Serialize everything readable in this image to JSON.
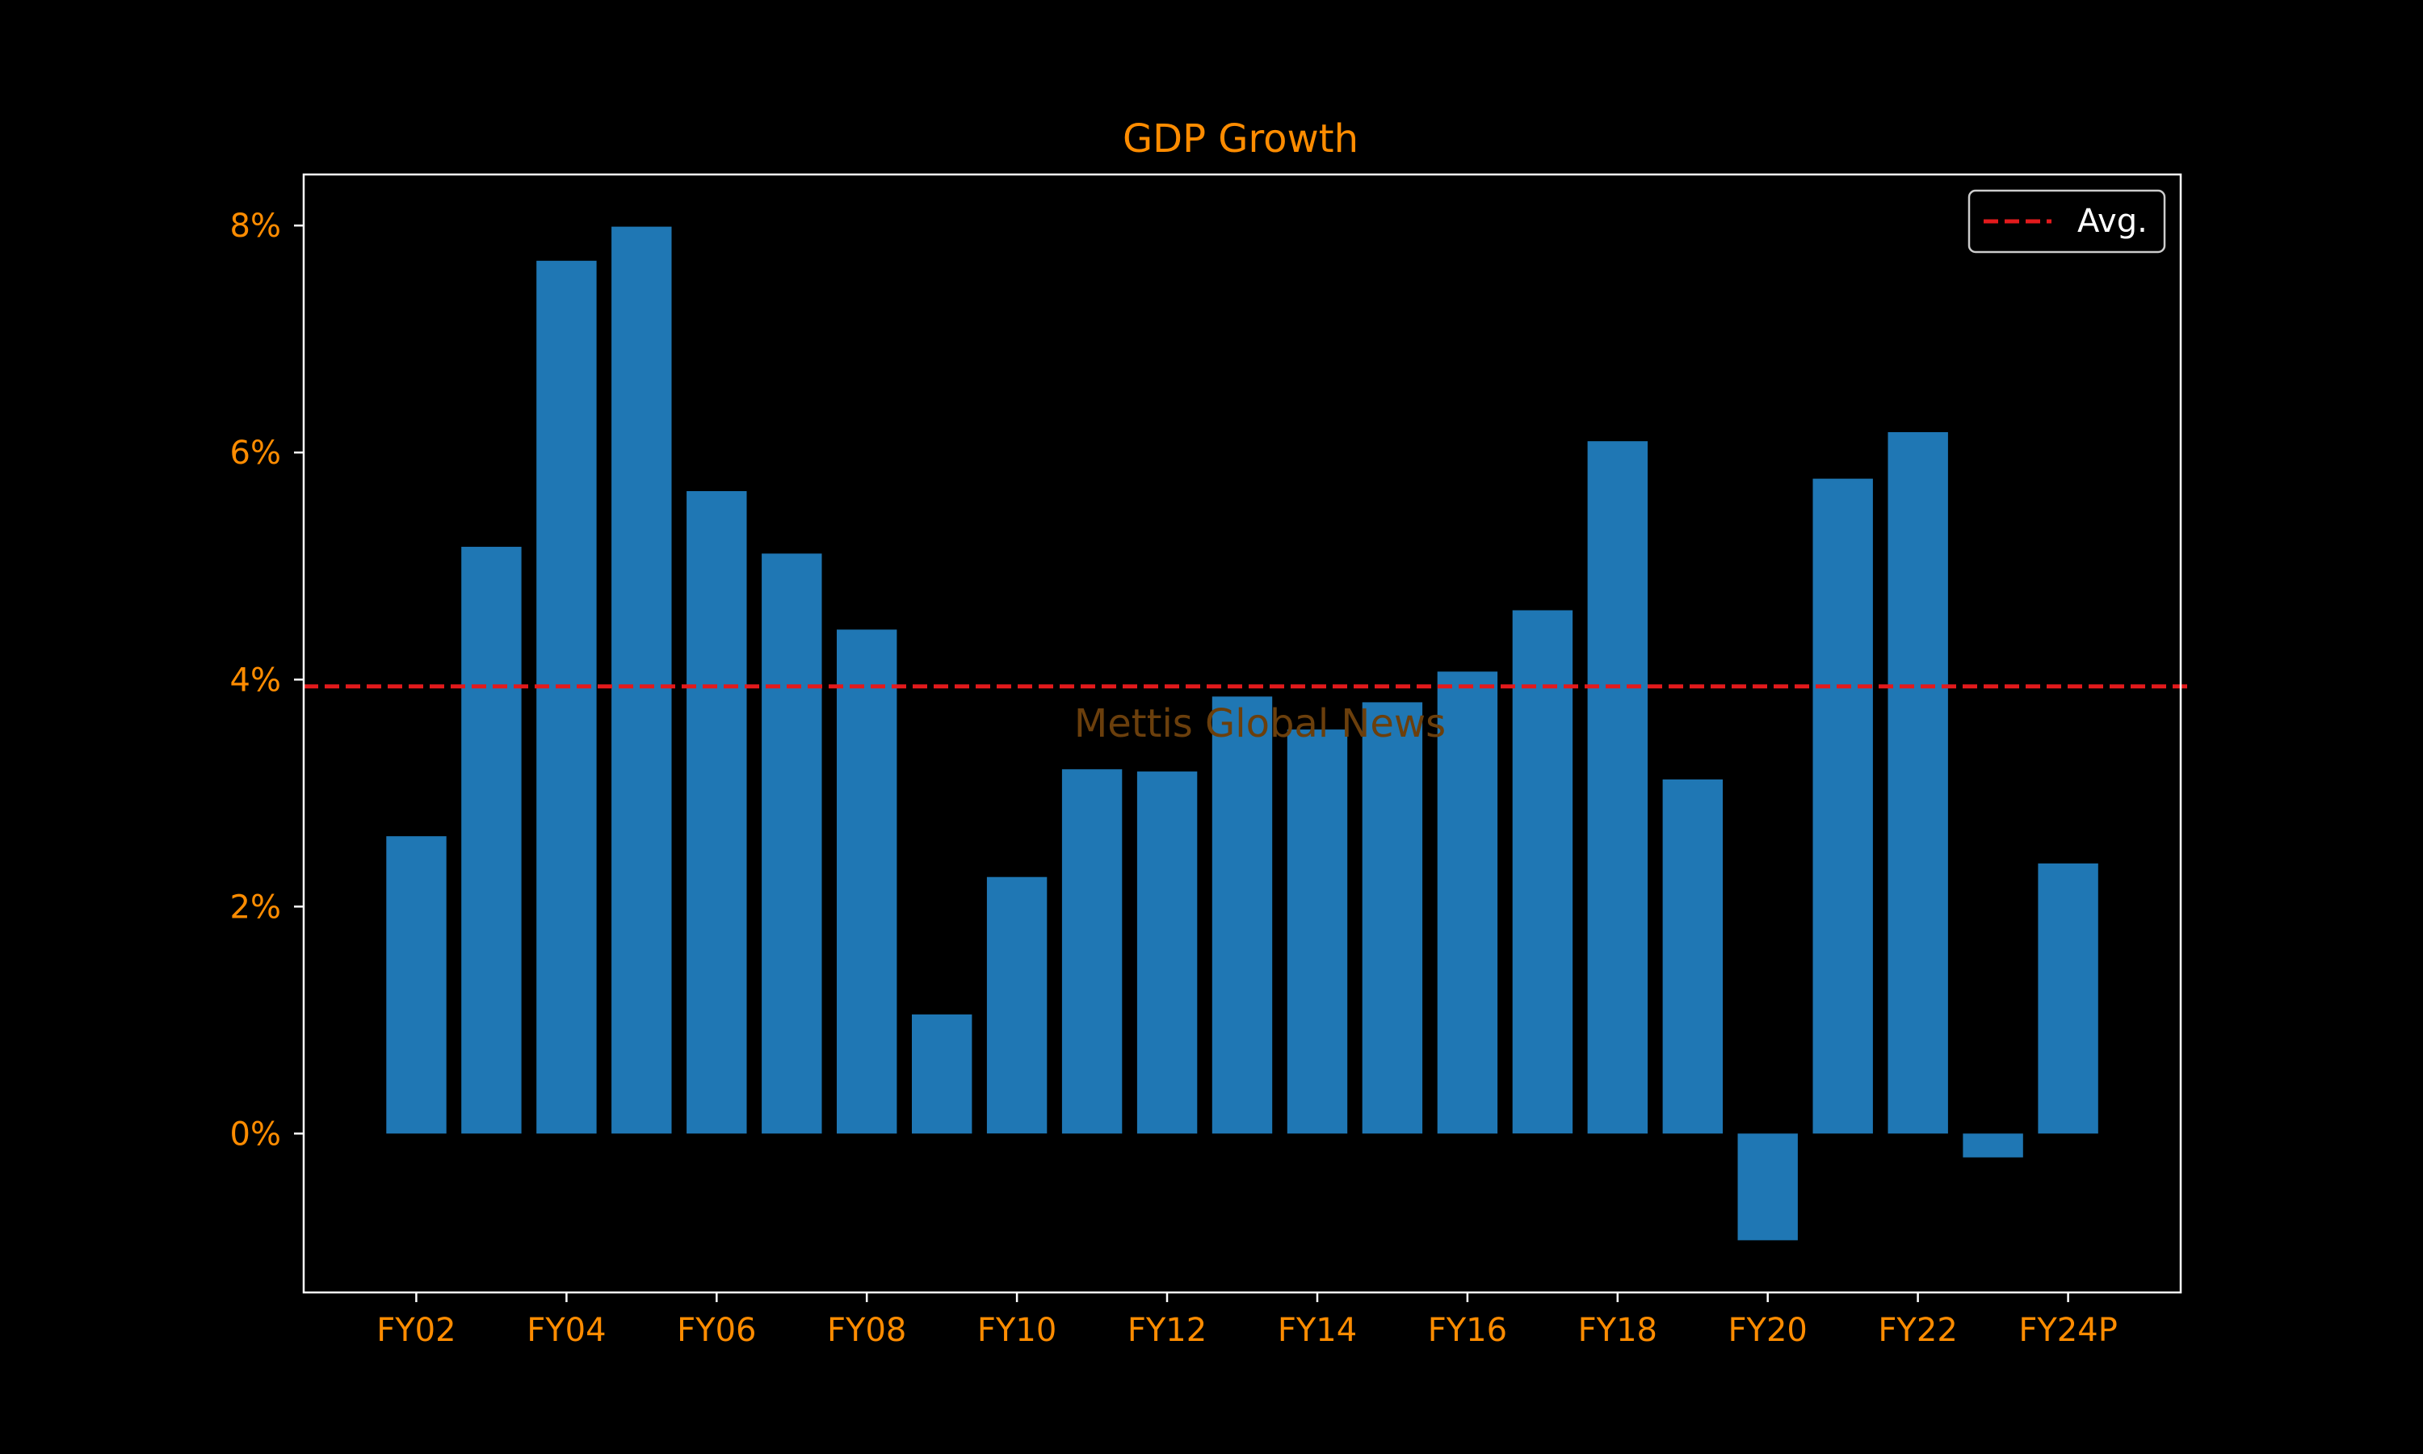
{
  "colors": {
    "background": "#000000",
    "bar": "#1f77b4",
    "text": "#ff8c00",
    "axes": "#ffffff",
    "avg_line": "#e31a1c",
    "legend_text": "#ffffff",
    "watermark": "#6b3f0c"
  },
  "watermark": "Mettis Global News",
  "chart_data": {
    "type": "bar",
    "title": "GDP Growth",
    "xlabel": "",
    "ylabel": "",
    "categories": [
      "FY02",
      "FY03",
      "FY04",
      "FY05",
      "FY06",
      "FY07",
      "FY08",
      "FY09",
      "FY10",
      "FY11",
      "FY12",
      "FY13",
      "FY14",
      "FY15",
      "FY16",
      "FY17",
      "FY18",
      "FY19",
      "FY20",
      "FY21",
      "FY22",
      "FY23",
      "FY24P"
    ],
    "values": [
      2.62,
      5.17,
      7.69,
      7.99,
      5.66,
      5.11,
      4.44,
      1.05,
      2.26,
      3.21,
      3.19,
      3.85,
      3.56,
      3.8,
      4.07,
      4.61,
      6.1,
      3.12,
      -0.94,
      5.77,
      6.18,
      -0.21,
      2.38
    ],
    "ylim": [
      -1.4,
      8.45
    ],
    "y_ticks": [
      0,
      2,
      4,
      6,
      8
    ],
    "y_tick_labels": [
      "0%",
      "2%",
      "4%",
      "6%",
      "8%"
    ],
    "x_tick_labels": [
      "FY02",
      "FY04",
      "FY06",
      "FY08",
      "FY10",
      "FY12",
      "FY14",
      "FY16",
      "FY18",
      "FY20",
      "FY22",
      "FY24P"
    ],
    "average": 3.94,
    "legend": {
      "label": "Avg.",
      "location": "top-right"
    },
    "grid": false
  }
}
